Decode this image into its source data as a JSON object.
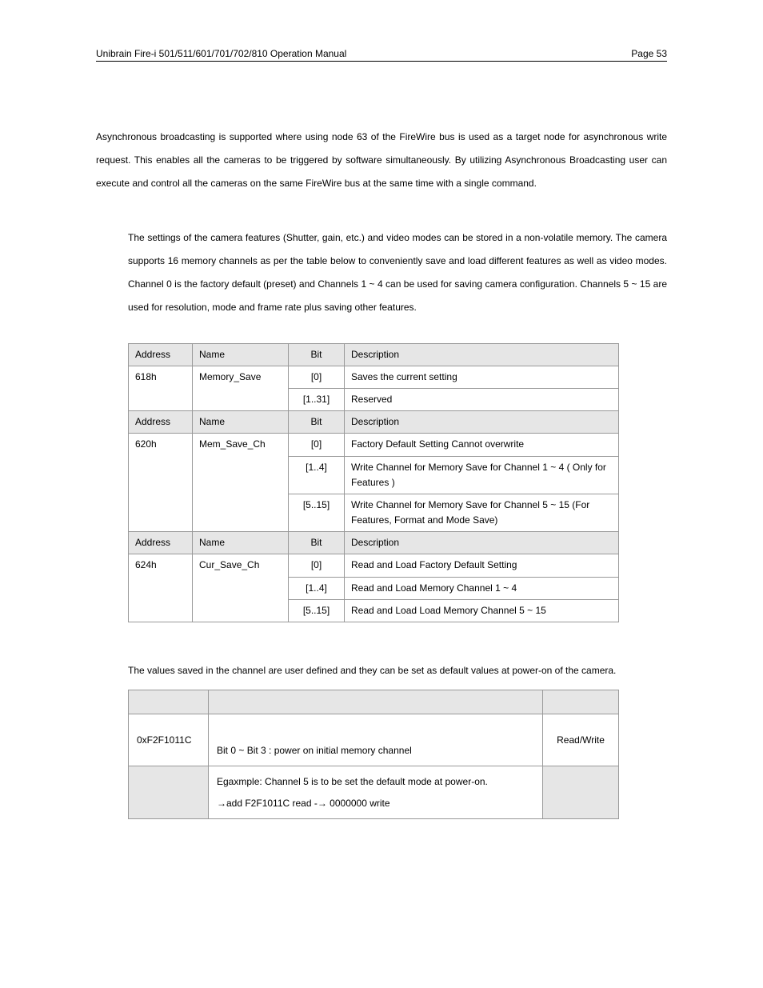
{
  "header": {
    "title": "Unibrain Fire-i 501/511/601/701/702/810 Operation Manual",
    "page": "Page 53"
  },
  "paragraphs": {
    "p1": "Asynchronous broadcasting is supported where using node 63 of the FireWire bus is used as a target node for asynchronous write request. This enables all the cameras to be triggered by software simultaneously. By utilizing Asynchronous Broadcasting user can execute and control all the cameras on the same FireWire bus at the same time with a single command.",
    "p2": "The settings of the camera features (Shutter, gain, etc.) and video modes can be stored in a non-volatile memory. The camera supports 16 memory channels as per the table below to conveniently save and load different features as well as video modes. Channel 0 is the factory default (preset) and Channels 1 ~ 4 can be used for saving camera configuration. Channels 5 ~ 15 are used for resolution, mode and frame rate plus saving other features.",
    "p3": "The values saved in the channel are user defined and they can be set as default values at power-on of the camera."
  },
  "table1": {
    "h_addr": "Address",
    "h_name": "Name",
    "h_bit": "Bit",
    "h_desc": "Description",
    "r1_addr": "618h",
    "r1_name": "Memory_Save",
    "r1_bit": "[0]",
    "r1_desc": "Saves the current setting",
    "r2_bit": "[1..31]",
    "r2_desc": "Reserved",
    "r3_addr": "620h",
    "r3_name": "Mem_Save_Ch",
    "r3_bit": "[0]",
    "r3_desc": "Factory Default Setting Cannot overwrite",
    "r4_bit": "[1..4]",
    "r4_desc": "Write Channel for Memory Save for Channel 1 ~ 4 ( Only for Features )",
    "r5_bit": "[5..15]",
    "r5_desc": "Write Channel for Memory Save for Channel 5 ~ 15 (For Features, Format and Mode Save)",
    "r6_addr": "624h",
    "r6_name": "Cur_Save_Ch",
    "r6_bit": "[0]",
    "r6_desc": "Read and Load Factory Default Setting",
    "r7_bit": "[1..4]",
    "r7_desc": "Read and Load Memory Channel 1 ~ 4",
    "r8_bit": "[5..15]",
    "r8_desc": "Read and Load Load Memory Channel 5 ~ 15"
  },
  "table2": {
    "addr": "0xF2F1011C",
    "desc": "Bit 0 ~ Bit 3 : power on initial memory channel",
    "rw": "Read/Write",
    "ex1": "Egaxmple: Channel 5 is to be set the default mode at power-on.",
    "ex2": "→add F2F1011C read -→   0000000 write"
  }
}
